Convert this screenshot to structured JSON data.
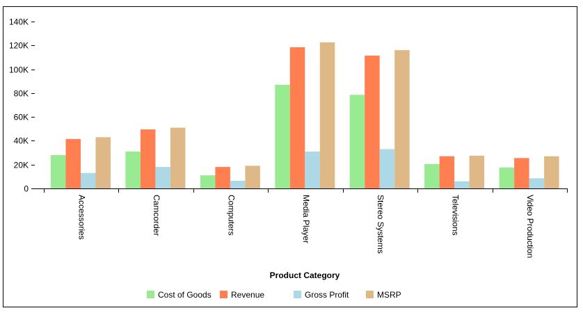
{
  "chart_data": {
    "type": "bar",
    "title": "",
    "xlabel": "Product Category",
    "ylabel": "",
    "ylim": [
      0,
      140000
    ],
    "yticks": [
      0,
      20000,
      40000,
      60000,
      80000,
      100000,
      120000,
      140000
    ],
    "ytick_labels": [
      "0",
      "20K",
      "40K",
      "60K",
      "80K",
      "100K",
      "120K",
      "140K"
    ],
    "grid": false,
    "legend_position": "bottom",
    "categories": [
      "Accessories",
      "Camcorder",
      "Computers",
      "Media Player",
      "Stereo Systems",
      "Televisions",
      "Video Production"
    ],
    "series": [
      {
        "name": "Cost of Goods",
        "color": "#98eb91",
        "values": [
          28000,
          31000,
          11000,
          87000,
          78500,
          20500,
          17500
        ]
      },
      {
        "name": "Revenue",
        "color": "#ff7f50",
        "values": [
          41500,
          49500,
          18000,
          118500,
          111500,
          27000,
          25500
        ]
      },
      {
        "name": "Gross Profit",
        "color": "#add8e6",
        "values": [
          13000,
          18000,
          6500,
          31000,
          33000,
          6000,
          8500
        ]
      },
      {
        "name": "MSRP",
        "color": "#deb887",
        "values": [
          43000,
          51000,
          19000,
          122500,
          116000,
          27500,
          27000
        ]
      }
    ]
  }
}
